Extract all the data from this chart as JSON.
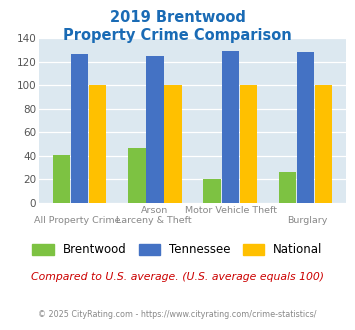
{
  "title_line1": "2019 Brentwood",
  "title_line2": "Property Crime Comparison",
  "title_color": "#1a6bb5",
  "cat_labels_top": [
    "",
    "Arson",
    "Motor Vehicle Theft",
    ""
  ],
  "cat_labels_bottom": [
    "All Property Crime",
    "Larceny & Theft",
    "",
    "Burglary"
  ],
  "brentwood": [
    41,
    47,
    20,
    26
  ],
  "tennessee": [
    126,
    125,
    129,
    128
  ],
  "national": [
    100,
    100,
    100,
    100
  ],
  "brentwood_color": "#7dc242",
  "tennessee_color": "#4472c4",
  "national_color": "#ffc000",
  "plot_bg": "#dce8f0",
  "ylim": [
    0,
    140
  ],
  "yticks": [
    0,
    20,
    40,
    60,
    80,
    100,
    120,
    140
  ],
  "footer_text": "Compared to U.S. average. (U.S. average equals 100)",
  "footer_color": "#cc0000",
  "copyright_text": "© 2025 CityRating.com - https://www.cityrating.com/crime-statistics/",
  "copyright_color": "#888888",
  "legend_labels": [
    "Brentwood",
    "Tennessee",
    "National"
  ]
}
